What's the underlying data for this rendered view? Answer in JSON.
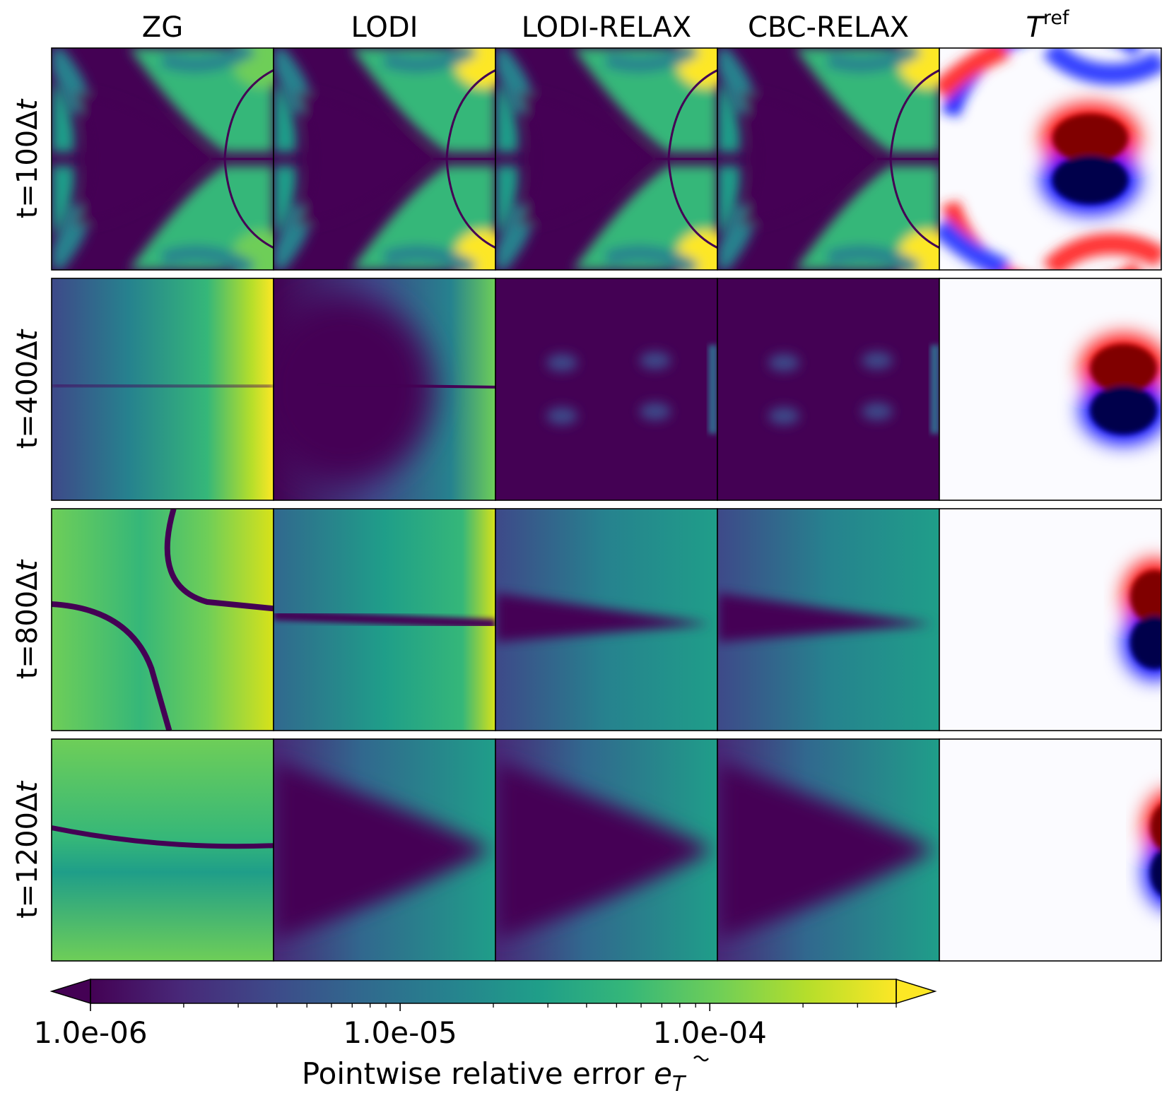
{
  "chart_data": {
    "type": "heatmap",
    "columns": [
      "ZG",
      "LODI",
      "LODI-RELAX",
      "CBC-RELAX",
      "T^ref"
    ],
    "ref_column": {
      "base": "T",
      "superscript": "ref"
    },
    "rows": [
      {
        "prefix": "t=",
        "value": "100",
        "delta": "Δ",
        "var": "t"
      },
      {
        "prefix": "t=",
        "value": "400",
        "delta": "Δ",
        "var": "t"
      },
      {
        "prefix": "t=",
        "value": "800",
        "delta": "Δ",
        "var": "t"
      },
      {
        "prefix": "t=",
        "value": "1200",
        "delta": "Δ",
        "var": "t"
      }
    ],
    "colorbar": {
      "scale": "log",
      "colormap": "viridis",
      "range": [
        1e-06,
        0.0004
      ],
      "extend": "both",
      "ticks": [
        {
          "value": 1e-06,
          "label": "1.0e-06"
        },
        {
          "value": 1e-05,
          "label": "1.0e-05"
        },
        {
          "value": 0.0001,
          "label": "1.0e-04"
        }
      ],
      "label_text": "Pointwise relative error",
      "label_symbol": "e",
      "label_subscript": "T"
    },
    "colors": {
      "viridis": [
        "#440154",
        "#482878",
        "#3e4989",
        "#31688e",
        "#26828e",
        "#1f9e89",
        "#35b779",
        "#6ece58",
        "#b5de2b",
        "#fde725"
      ],
      "seismic": [
        "#00004c",
        "#0000ff",
        "#ffffff",
        "#ff0000",
        "#800000"
      ]
    }
  }
}
